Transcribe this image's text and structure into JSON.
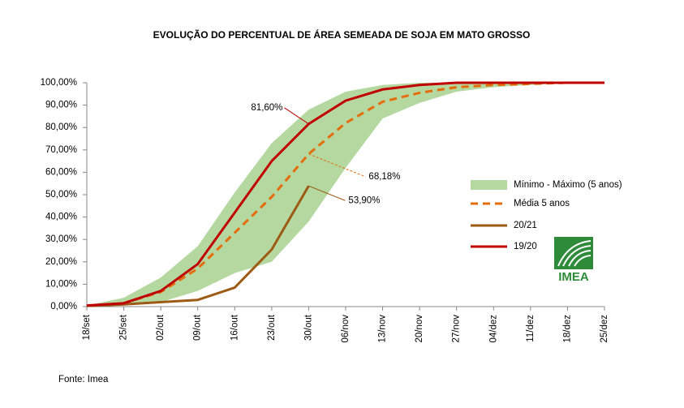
{
  "chart_data": {
    "type": "line",
    "title": "EVOLUÇÃO DO PERCENTUAL DE ÁREA SEMEADA DE SOJA EM MATO GROSSO",
    "categories": [
      "18/set",
      "25/set",
      "02/out",
      "09/out",
      "16/out",
      "23/out",
      "30/out",
      "06/nov",
      "13/nov",
      "20/nov",
      "27/nov",
      "04/dez",
      "11/dez",
      "18/dez",
      "25/dez"
    ],
    "ylim": [
      0,
      100
    ],
    "yticks": [
      {
        "value": 0,
        "label": "0,00%"
      },
      {
        "value": 10,
        "label": "10,00%"
      },
      {
        "value": 20,
        "label": "20,00%"
      },
      {
        "value": 30,
        "label": "30,00%"
      },
      {
        "value": 40,
        "label": "40,00%"
      },
      {
        "value": 50,
        "label": "50,00%"
      },
      {
        "value": 60,
        "label": "60,00%"
      },
      {
        "value": 70,
        "label": "70,00%"
      },
      {
        "value": 80,
        "label": "80,00%"
      },
      {
        "value": 90,
        "label": "90,00%"
      },
      {
        "value": 100,
        "label": "100,00%"
      }
    ],
    "series": [
      {
        "name": "Mínimo - Máximo (5 anos)",
        "color": "#b5d8a0",
        "style": "band",
        "low": [
          0,
          0.5,
          2,
          7,
          15,
          20,
          38,
          62,
          84,
          91,
          96,
          98,
          99,
          100,
          100
        ],
        "high": [
          0.5,
          4,
          13,
          27,
          51,
          73,
          88,
          96,
          99,
          100,
          100,
          100,
          100,
          100,
          100
        ]
      },
      {
        "name": "Média 5 anos",
        "color": "#e46c0a",
        "style": "dashed",
        "values": [
          0.3,
          1.5,
          6.5,
          17,
          33,
          49,
          68.18,
          82,
          91.5,
          95.5,
          98,
          99,
          99.5,
          100,
          100
        ],
        "value_labels": [
          null,
          null,
          null,
          null,
          null,
          null,
          "68,18%",
          null,
          null,
          null,
          null,
          null,
          null,
          null,
          null
        ]
      },
      {
        "name": "20/21",
        "color": "#9c5a14",
        "style": "solid",
        "values": [
          0.3,
          1,
          2,
          3,
          8.5,
          25.5,
          53.9,
          null,
          null,
          null,
          null,
          null,
          null,
          null,
          null
        ],
        "value_labels": [
          null,
          null,
          null,
          null,
          null,
          null,
          "53,90%",
          null,
          null,
          null,
          null,
          null,
          null,
          null,
          null
        ]
      },
      {
        "name": "19/20",
        "color": "#c00000",
        "style": "solid",
        "values": [
          0.5,
          1.5,
          7,
          19,
          42,
          65,
          81.6,
          92,
          97,
          99,
          100,
          100,
          100,
          100,
          100
        ],
        "value_labels": [
          null,
          null,
          null,
          null,
          null,
          null,
          "81,60%",
          null,
          null,
          null,
          null,
          null,
          null,
          null,
          null
        ]
      }
    ],
    "logo": "IMEA",
    "source": "Fonte: Imea"
  }
}
